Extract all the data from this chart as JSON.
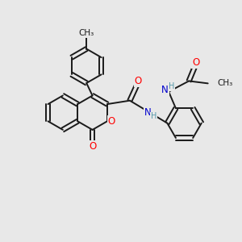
{
  "bg_color": "#e8e8e8",
  "bond_color": "#1a1a1a",
  "bond_width": 1.4,
  "atom_colors": {
    "O": "#ff0000",
    "N": "#0000cd",
    "H": "#5599aa",
    "C": "#1a1a1a"
  },
  "font_size": 8.5
}
